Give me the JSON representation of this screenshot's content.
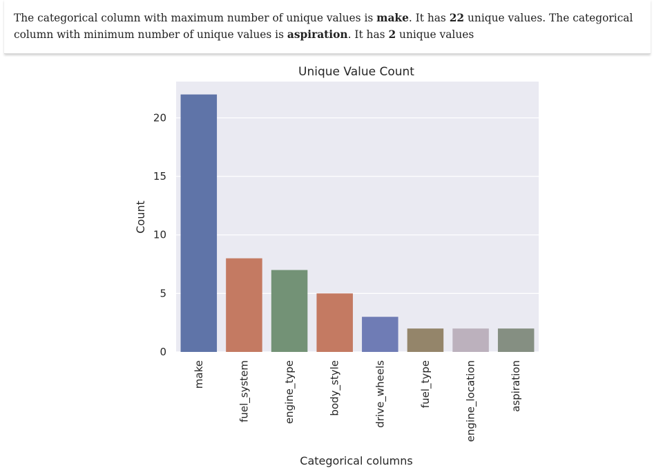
{
  "summary": {
    "part1": "The categorical column with maximum number of unique values is ",
    "max_column": "make",
    "part2": ". It has ",
    "max_count": "22",
    "part3": " unique values. The categorical column with minimum number of unique values is ",
    "min_column": "aspiration",
    "part4": ". It has ",
    "min_count": "2",
    "part5": " unique values"
  },
  "chart_data": {
    "type": "bar",
    "title": "Unique Value Count",
    "xlabel": "Categorical columns",
    "ylabel": "Count",
    "categories": [
      "make",
      "fuel_system",
      "engine_type",
      "body_style",
      "drive_wheels",
      "fuel_type",
      "engine_location",
      "aspiration"
    ],
    "values": [
      22,
      8,
      7,
      5,
      3,
      2,
      2,
      2
    ],
    "colors": [
      "#5f74a8",
      "#c47a62",
      "#739276",
      "#c47a62",
      "#6f7cb5",
      "#94856a",
      "#bcb1bd",
      "#858f82"
    ],
    "ylim": [
      0,
      23.1
    ],
    "yticks": [
      0,
      5,
      10,
      15,
      20
    ],
    "grid": true,
    "plot_background": "#eaeaf2",
    "grid_color": "#ffffff"
  }
}
